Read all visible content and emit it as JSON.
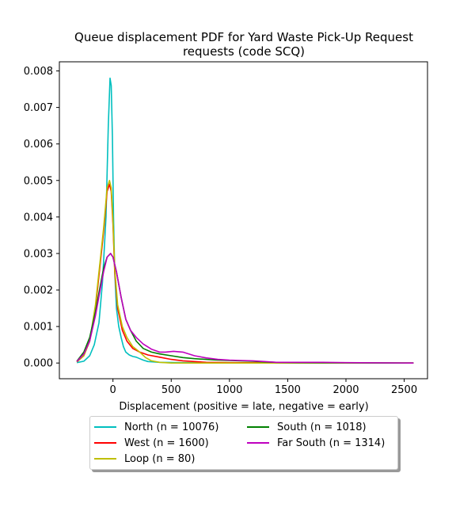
{
  "chart_data": {
    "type": "line",
    "title_line1": "Queue displacement PDF for Yard Waste Pick-Up Request",
    "title_line2": "requests (code SCQ)",
    "xlabel": "Displacement (positive = late, negative = early)",
    "ylabel": "",
    "xlim": [
      -460,
      2700
    ],
    "ylim": [
      -0.00043,
      0.00825
    ],
    "xticks": [
      0,
      500,
      1000,
      1500,
      2000,
      2500
    ],
    "xtick_labels": [
      "0",
      "500",
      "1000",
      "1500",
      "2000",
      "2500"
    ],
    "yticks": [
      0.0,
      0.001,
      0.002,
      0.003,
      0.004,
      0.005,
      0.006,
      0.007,
      0.008
    ],
    "ytick_labels": [
      "0.000",
      "0.001",
      "0.002",
      "0.003",
      "0.004",
      "0.005",
      "0.006",
      "0.007",
      "0.008"
    ],
    "grid": false,
    "legend_placement": "below",
    "series": [
      {
        "name": "North (n = 10076)",
        "color": "#00bfbf",
        "points": [
          [
            -310,
            1e-05
          ],
          [
            -250,
            5e-05
          ],
          [
            -200,
            0.0002
          ],
          [
            -160,
            0.0005
          ],
          [
            -120,
            0.0011
          ],
          [
            -90,
            0.0022
          ],
          [
            -60,
            0.004
          ],
          [
            -40,
            0.0065
          ],
          [
            -25,
            0.0078
          ],
          [
            -15,
            0.0076
          ],
          [
            -5,
            0.0062
          ],
          [
            5,
            0.004
          ],
          [
            15,
            0.0025
          ],
          [
            30,
            0.0015
          ],
          [
            50,
            0.001
          ],
          [
            70,
            0.0007
          ],
          [
            90,
            0.00045
          ],
          [
            110,
            0.0003
          ],
          [
            140,
            0.00022
          ],
          [
            170,
            0.00018
          ],
          [
            200,
            0.00016
          ],
          [
            230,
            0.00012
          ],
          [
            260,
            8e-05
          ],
          [
            300,
            4e-05
          ],
          [
            400,
            2e-05
          ],
          [
            600,
            1e-05
          ],
          [
            1000,
            5e-06
          ],
          [
            1500,
            3e-06
          ],
          [
            2000,
            2e-06
          ],
          [
            2580,
            0.0
          ]
        ]
      },
      {
        "name": "West (n = 1600)",
        "color": "#ff0000",
        "points": [
          [
            -310,
            3e-05
          ],
          [
            -250,
            0.0002
          ],
          [
            -200,
            0.0006
          ],
          [
            -150,
            0.0015
          ],
          [
            -110,
            0.0027
          ],
          [
            -80,
            0.0036
          ],
          [
            -50,
            0.0047
          ],
          [
            -30,
            0.0049
          ],
          [
            -15,
            0.0047
          ],
          [
            0,
            0.0038
          ],
          [
            15,
            0.0025
          ],
          [
            40,
            0.0015
          ],
          [
            80,
            0.0009
          ],
          [
            120,
            0.0006
          ],
          [
            170,
            0.0004
          ],
          [
            230,
            0.0003
          ],
          [
            300,
            0.00022
          ],
          [
            400,
            0.00016
          ],
          [
            500,
            0.0001
          ],
          [
            600,
            6e-05
          ],
          [
            800,
            2e-05
          ],
          [
            1000,
            1e-05
          ],
          [
            1500,
            5e-06
          ],
          [
            2000,
            3e-06
          ],
          [
            2580,
            0.0
          ]
        ]
      },
      {
        "name": "Loop (n = 80)",
        "color": "#bfbf00",
        "points": [
          [
            -310,
            3e-05
          ],
          [
            -250,
            0.0002
          ],
          [
            -200,
            0.0006
          ],
          [
            -150,
            0.0016
          ],
          [
            -110,
            0.0028
          ],
          [
            -80,
            0.0037
          ],
          [
            -50,
            0.0048
          ],
          [
            -30,
            0.005
          ],
          [
            -15,
            0.0048
          ],
          [
            0,
            0.0039
          ],
          [
            15,
            0.0026
          ],
          [
            40,
            0.0016
          ],
          [
            80,
            0.001
          ],
          [
            120,
            0.0007
          ],
          [
            170,
            0.00045
          ],
          [
            230,
            0.0003
          ],
          [
            280,
            0.00015
          ],
          [
            330,
            6e-05
          ],
          [
            400,
            2e-05
          ],
          [
            500,
            0.0
          ],
          [
            700,
            0.0
          ],
          [
            1000,
            0.0
          ],
          [
            1500,
            0.0
          ],
          [
            2000,
            0.0
          ],
          [
            2580,
            0.0
          ]
        ]
      },
      {
        "name": "South (n = 1018)",
        "color": "#008000",
        "points": [
          [
            -310,
            5e-05
          ],
          [
            -250,
            0.0003
          ],
          [
            -200,
            0.0007
          ],
          [
            -150,
            0.0014
          ],
          [
            -110,
            0.0021
          ],
          [
            -80,
            0.0026
          ],
          [
            -50,
            0.0029
          ],
          [
            -20,
            0.003
          ],
          [
            0,
            0.0029
          ],
          [
            30,
            0.0025
          ],
          [
            70,
            0.0018
          ],
          [
            110,
            0.0012
          ],
          [
            150,
            0.0009
          ],
          [
            200,
            0.0006
          ],
          [
            260,
            0.0004
          ],
          [
            330,
            0.0003
          ],
          [
            400,
            0.00025
          ],
          [
            500,
            0.0002
          ],
          [
            600,
            0.00015
          ],
          [
            700,
            0.00012
          ],
          [
            800,
            0.0001
          ],
          [
            900,
            8e-05
          ],
          [
            1000,
            7e-05
          ],
          [
            1100,
            6e-05
          ],
          [
            1200,
            5e-05
          ],
          [
            1300,
            3e-05
          ],
          [
            1400,
            2e-05
          ],
          [
            1600,
            1e-05
          ],
          [
            2000,
            5e-06
          ],
          [
            2580,
            0.0
          ]
        ]
      },
      {
        "name": "Far South (n = 1314)",
        "color": "#bf00bf",
        "points": [
          [
            -310,
            4e-05
          ],
          [
            -250,
            0.00025
          ],
          [
            -200,
            0.0006
          ],
          [
            -150,
            0.0013
          ],
          [
            -110,
            0.002
          ],
          [
            -80,
            0.0025
          ],
          [
            -50,
            0.0029
          ],
          [
            -20,
            0.003
          ],
          [
            0,
            0.0029
          ],
          [
            30,
            0.0025
          ],
          [
            70,
            0.0018
          ],
          [
            110,
            0.0012
          ],
          [
            150,
            0.0009
          ],
          [
            200,
            0.0007
          ],
          [
            260,
            0.00052
          ],
          [
            330,
            0.00038
          ],
          [
            400,
            0.0003
          ],
          [
            450,
            0.0003
          ],
          [
            520,
            0.00032
          ],
          [
            600,
            0.0003
          ],
          [
            700,
            0.0002
          ],
          [
            800,
            0.00014
          ],
          [
            900,
            0.0001
          ],
          [
            1000,
            8e-05
          ],
          [
            1100,
            7e-05
          ],
          [
            1200,
            6e-05
          ],
          [
            1300,
            4e-05
          ],
          [
            1400,
            2e-05
          ],
          [
            1600,
            2e-05
          ],
          [
            1800,
            2e-05
          ],
          [
            2000,
            1e-05
          ],
          [
            2580,
            0.0
          ]
        ]
      }
    ]
  }
}
